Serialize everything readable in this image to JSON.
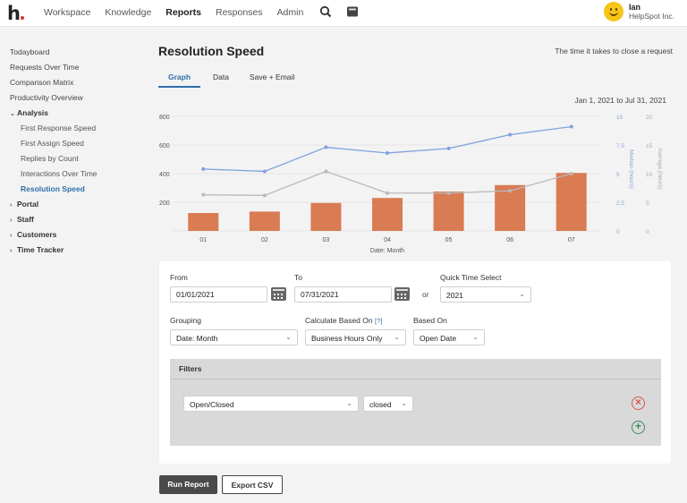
{
  "brand": {
    "logo_text": "h"
  },
  "nav": {
    "items": [
      "Workspace",
      "Knowledge",
      "Reports",
      "Responses",
      "Admin"
    ],
    "active": "Reports"
  },
  "user": {
    "name": "Ian",
    "org": "HelpSpot Inc."
  },
  "sidebar": {
    "items": [
      {
        "label": "Todayboard"
      },
      {
        "label": "Requests Over Time"
      },
      {
        "label": "Comparison Matrix"
      },
      {
        "label": "Productivity Overview"
      },
      {
        "label": "Analysis"
      },
      {
        "label": "First Response Speed"
      },
      {
        "label": "First Assign Speed"
      },
      {
        "label": "Replies by Count"
      },
      {
        "label": "Interactions Over Time"
      },
      {
        "label": "Resolution Speed"
      },
      {
        "label": "Portal"
      },
      {
        "label": "Staff"
      },
      {
        "label": "Customers"
      },
      {
        "label": "Time Tracker"
      }
    ]
  },
  "page": {
    "title": "Resolution Speed",
    "subtitle": "The time it takes to close a request",
    "tabs": [
      "Graph",
      "Data",
      "Save + Email"
    ],
    "date_range": "Jan 1, 2021 to Jul 31, 2021"
  },
  "chart_data": {
    "type": "bar",
    "categories": [
      "01",
      "02",
      "03",
      "04",
      "05",
      "06",
      "07"
    ],
    "xlabel": "Date: Month",
    "ylabel_right_1": "Median (hours)",
    "ylabel_right_2": "Average (hours)",
    "y_left_ticks": [
      "800",
      "600",
      "400",
      "200"
    ],
    "y_right1_ticks": [
      "10",
      "7.5",
      "5",
      "2.5",
      "0"
    ],
    "y_right2_ticks": [
      "20",
      "15",
      "10",
      "5",
      "0"
    ],
    "ylim_left": [
      0,
      800
    ],
    "ylim_right1": [
      0,
      10
    ],
    "ylim_right2": [
      0,
      20
    ],
    "series": [
      {
        "values": [
          125,
          135,
          195,
          230,
          275,
          320,
          405
        ],
        "color": "#d97b53",
        "axis": "left",
        "kind": "bar"
      },
      {
        "values": [
          5.4,
          5.2,
          7.3,
          6.8,
          7.2,
          8.4,
          9.1
        ],
        "color": "#7ea2dc",
        "axis": "right1",
        "kind": "line"
      },
      {
        "values": [
          6.3,
          6.2,
          10.4,
          6.6,
          6.6,
          7.0,
          10.0
        ],
        "color": "#b9b9b9",
        "axis": "right2",
        "kind": "line"
      }
    ],
    "grid": true
  },
  "form": {
    "from_label": "From",
    "from_value": "01/01/2021",
    "to_label": "To",
    "to_value": "07/31/2021",
    "or_label": "or",
    "quick_label": "Quick Time Select",
    "quick_value": "2021",
    "grouping_label": "Grouping",
    "grouping_value": "Date: Month",
    "calc_label": "Calculate Based On",
    "calc_help": "[?]",
    "calc_value": "Business Hours Only",
    "based_label": "Based On",
    "based_value": "Open Date",
    "filters_title": "Filters",
    "filter_field": "Open/Closed",
    "filter_value": "closed"
  },
  "actions": {
    "run": "Run Report",
    "export": "Export CSV"
  },
  "colors": {
    "accent": "#2f6fa8",
    "bar": "#d97b53",
    "remove": "#d9534f",
    "add": "#3a8a5c"
  }
}
